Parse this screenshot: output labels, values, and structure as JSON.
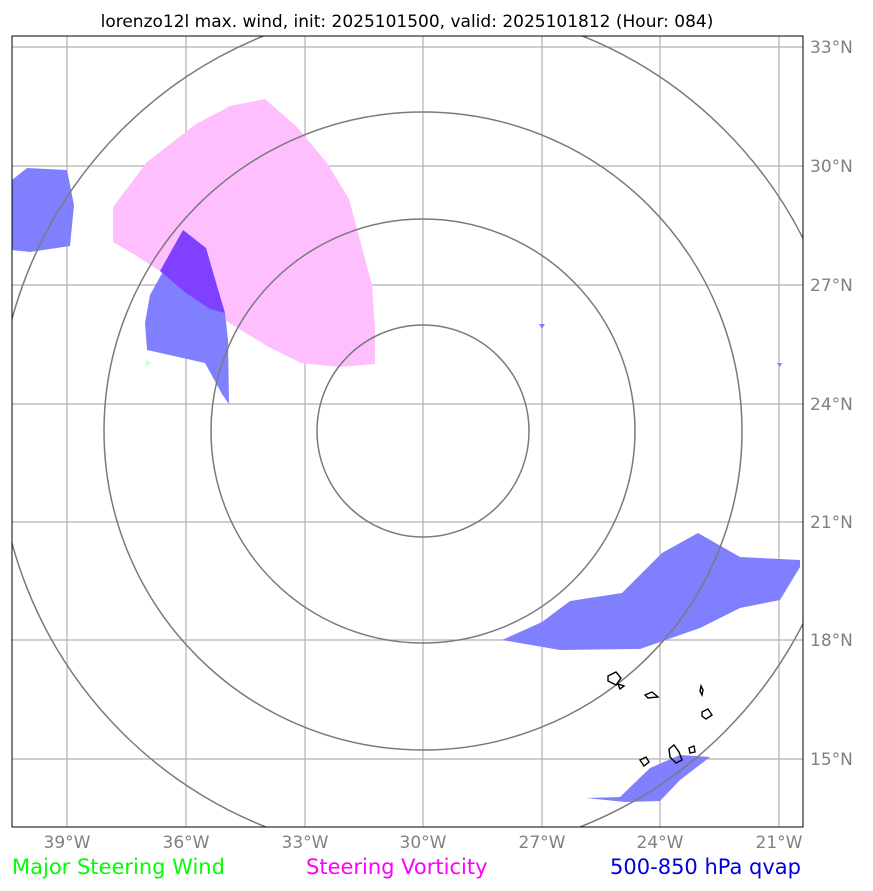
{
  "title": "lorenzo12l max. wind, init: 2025101500, valid: 2025101812 (Hour: 084)",
  "colors": {
    "steering_wind": "#00ff00",
    "steering_vorticity": "#ff00ff",
    "qvap": "#0000dd",
    "vorticity_fill": "#ffbfff",
    "qvap_fill": "#8080ff",
    "overlap_fill": "#8040ff",
    "ring": "#7a7a7a",
    "grid": "#b0b0b0",
    "tick_text": "#808080"
  },
  "x_ticks": [
    "39°W",
    "36°W",
    "33°W",
    "30°W",
    "27°W",
    "24°W",
    "21°W"
  ],
  "y_ticks": [
    "33°N",
    "30°N",
    "27°N",
    "24°N",
    "21°N",
    "18°N",
    "15°N"
  ],
  "legend": {
    "wind": "Major Steering Wind",
    "vorticity": "Steering Vorticity",
    "qvap": "500-850 hPa qvap"
  }
}
